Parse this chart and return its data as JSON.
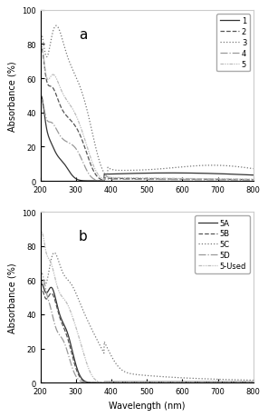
{
  "xlim": [
    200,
    800
  ],
  "ylim_a": [
    0,
    100
  ],
  "ylim_b": [
    0,
    100
  ],
  "xticks": [
    200,
    300,
    400,
    500,
    600,
    700,
    800
  ],
  "yticks": [
    0,
    20,
    40,
    60,
    80,
    100
  ],
  "xlabel": "Wavelength (nm)",
  "ylabel": "Absorbance (%)",
  "label_a": "a",
  "label_b": "b",
  "legend_a": [
    "1",
    "2",
    "3",
    "4",
    "5"
  ],
  "legend_b": [
    "5A",
    "5B",
    "5C",
    "5D",
    "5-Used"
  ],
  "bg_color": "#ffffff"
}
